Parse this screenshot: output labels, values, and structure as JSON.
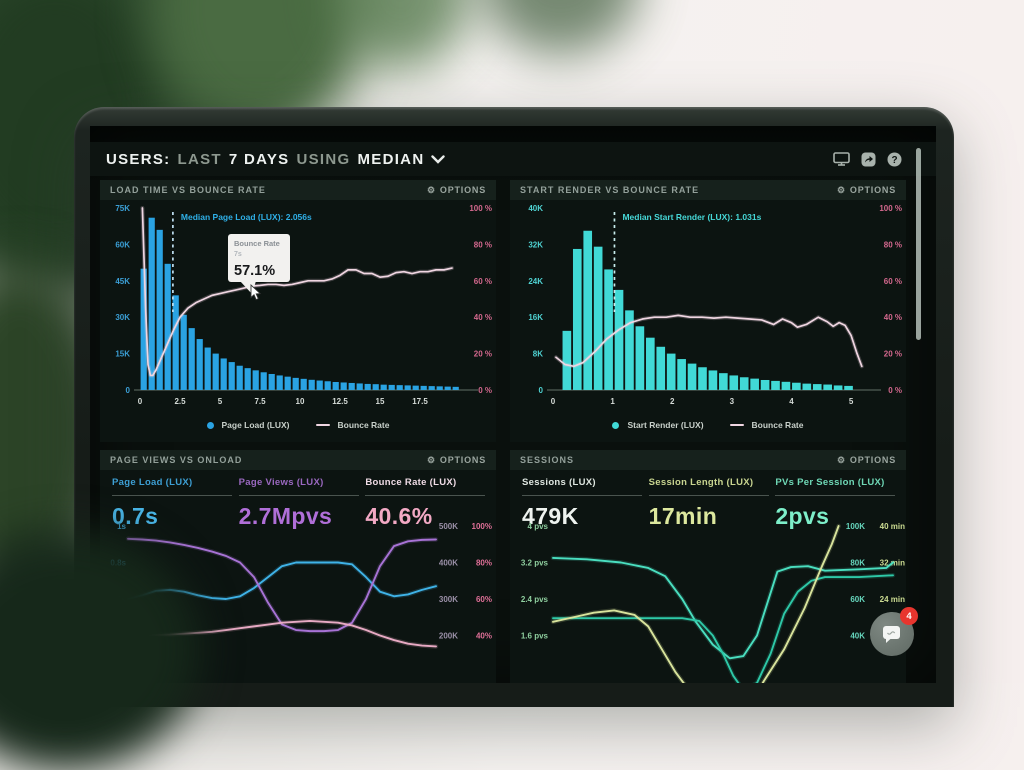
{
  "header": {
    "title_parts": [
      "USERS:",
      "LAST",
      "7 DAYS",
      "USING",
      "MEDIAN"
    ]
  },
  "panels": [
    {
      "title": "LOAD TIME VS BOUNCE RATE",
      "options_label": "OPTIONS"
    },
    {
      "title": "START RENDER VS BOUNCE RATE",
      "options_label": "OPTIONS"
    },
    {
      "title": "PAGE VIEWS VS ONLOAD",
      "options_label": "OPTIONS",
      "metrics": [
        {
          "label": "Page Load (LUX)",
          "value": "0.7s",
          "label_color": "#3d9fd4",
          "value_color": "#49b6e9"
        },
        {
          "label": "Page Views (LUX)",
          "value": "2.7Mpvs",
          "label_color": "#9a68c0",
          "value_color": "#b06fd8"
        },
        {
          "label": "Bounce Rate (LUX)",
          "value": "40.6%",
          "label_color": "#f0dce6",
          "value_color": "#f2a9c4"
        }
      ]
    },
    {
      "title": "SESSIONS",
      "options_label": "OPTIONS",
      "metrics": [
        {
          "label": "Sessions (LUX)",
          "value": "479K",
          "label_color": "#dfe7e1",
          "value_color": "#eef3ef"
        },
        {
          "label": "Session Length (LUX)",
          "value": "17min",
          "label_color": "#c9d590",
          "value_color": "#dde89e"
        },
        {
          "label": "PVs Per Session (LUX)",
          "value": "2pvs",
          "label_color": "#6fd8b6",
          "value_color": "#7deec9"
        }
      ]
    }
  ],
  "chart_data": [
    {
      "type": "bar",
      "title": "LOAD TIME VS BOUNCE RATE",
      "xlim": [
        0,
        20
      ],
      "x_ticks": [
        "0",
        "2.5",
        "5",
        "7.5",
        "10",
        "12.5",
        "15",
        "17.5"
      ],
      "left_axis": {
        "ticks": [
          "75K",
          "60K",
          "45K",
          "30K",
          "15K",
          "0"
        ],
        "ylim": [
          0,
          75000
        ],
        "color": "#3b9fd6"
      },
      "right_axis": {
        "ticks": [
          "100 %",
          "80 %",
          "60 %",
          "40 %",
          "20 %",
          "0 %"
        ],
        "ylim": [
          0,
          100
        ],
        "color": "#d4688e"
      },
      "bars": {
        "name": "Page Load (LUX)",
        "color": "#2aa3e3",
        "bin_start": 0,
        "bin_width": 0.5,
        "values_k": [
          50,
          71,
          66,
          52,
          39,
          31,
          25.5,
          21,
          17.5,
          15,
          13,
          11.5,
          10,
          9,
          8.1,
          7.3,
          6.6,
          6,
          5.5,
          5,
          4.6,
          4.2,
          3.9,
          3.6,
          3.3,
          3.1,
          2.9,
          2.7,
          2.5,
          2.4,
          2.2,
          2.1,
          2,
          1.9,
          1.8,
          1.7,
          1.6,
          1.5,
          1.4,
          1.3
        ]
      },
      "line": {
        "name": "Bounce Rate",
        "color": "#f0d6e2",
        "points": [
          [
            0.15,
            100
          ],
          [
            0.35,
            45
          ],
          [
            0.5,
            14
          ],
          [
            0.65,
            8
          ],
          [
            0.8,
            8
          ],
          [
            1,
            11
          ],
          [
            1.3,
            17
          ],
          [
            1.7,
            25
          ],
          [
            2.1,
            33
          ],
          [
            2.5,
            40
          ],
          [
            3,
            45
          ],
          [
            3.5,
            48
          ],
          [
            4,
            50
          ],
          [
            4.5,
            52
          ],
          [
            5,
            53
          ],
          [
            5.5,
            54
          ],
          [
            6,
            55
          ],
          [
            6.5,
            56
          ],
          [
            7,
            57.1
          ],
          [
            7.5,
            57.5
          ],
          [
            8,
            58
          ],
          [
            8.5,
            58
          ],
          [
            9,
            57.5
          ],
          [
            9.5,
            58
          ],
          [
            10,
            59
          ],
          [
            10.5,
            60
          ],
          [
            11,
            60
          ],
          [
            11.5,
            60
          ],
          [
            12,
            61
          ],
          [
            12.5,
            63
          ],
          [
            13,
            66
          ],
          [
            13.5,
            66
          ],
          [
            14,
            64
          ],
          [
            14.5,
            64
          ],
          [
            15,
            62
          ],
          [
            15.5,
            62.5
          ],
          [
            16,
            64.5
          ],
          [
            16.5,
            65
          ],
          [
            17,
            64
          ],
          [
            17.5,
            65
          ],
          [
            18,
            65
          ],
          [
            18.5,
            66
          ],
          [
            19,
            66
          ],
          [
            19.5,
            67
          ]
        ]
      },
      "median_line": {
        "x": 2.056,
        "label": "Median Page Load (LUX): 2.056s",
        "color": "#2fb0e8",
        "dash_color": "#bfe0f2"
      },
      "tooltip": {
        "title": "Bounce Rate",
        "subtitle": "7s",
        "value": "57.1%",
        "at_x": 7
      },
      "legend": [
        {
          "marker": "dot",
          "color": "#2aa3e3",
          "label": "Page Load (LUX)"
        },
        {
          "marker": "line",
          "color": "#f0d6e2",
          "label": "Bounce Rate"
        }
      ]
    },
    {
      "type": "bar",
      "title": "START RENDER VS BOUNCE RATE",
      "xlim": [
        0,
        5.2
      ],
      "x_ticks": [
        "0",
        "1",
        "2",
        "3",
        "4",
        "5"
      ],
      "left_axis": {
        "ticks": [
          "40K",
          "32K",
          "24K",
          "16K",
          "8K",
          "0"
        ],
        "ylim": [
          0,
          40000
        ],
        "color": "#4fd2d2"
      },
      "right_axis": {
        "ticks": [
          "100 %",
          "80 %",
          "60 %",
          "40 %",
          "20 %",
          "0 %"
        ],
        "ylim": [
          0,
          100
        ],
        "color": "#d4688e"
      },
      "bars": {
        "name": "Start Render (LUX)",
        "color": "#41d9d6",
        "bin_start": 0.15,
        "bin_width": 0.175,
        "values_k": [
          13,
          31,
          35,
          31.5,
          26.5,
          22,
          17.5,
          14,
          11.5,
          9.5,
          8,
          6.8,
          5.8,
          5,
          4.3,
          3.7,
          3.2,
          2.8,
          2.5,
          2.2,
          2,
          1.8,
          1.6,
          1.4,
          1.3,
          1.2,
          1,
          0.9
        ]
      },
      "line": {
        "name": "Bounce Rate",
        "color": "#f0d6e2",
        "points": [
          [
            0.05,
            18
          ],
          [
            0.2,
            14
          ],
          [
            0.35,
            13
          ],
          [
            0.5,
            15
          ],
          [
            0.7,
            21
          ],
          [
            0.9,
            28
          ],
          [
            1.1,
            33
          ],
          [
            1.3,
            37
          ],
          [
            1.5,
            39
          ],
          [
            1.7,
            40
          ],
          [
            1.9,
            40
          ],
          [
            2.1,
            41
          ],
          [
            2.3,
            40
          ],
          [
            2.5,
            40
          ],
          [
            2.7,
            39.5
          ],
          [
            2.9,
            40
          ],
          [
            3.1,
            39.5
          ],
          [
            3.3,
            39
          ],
          [
            3.5,
            38.5
          ],
          [
            3.7,
            36
          ],
          [
            3.85,
            39
          ],
          [
            4,
            37
          ],
          [
            4.1,
            34.5
          ],
          [
            4.25,
            36
          ],
          [
            4.45,
            40
          ],
          [
            4.6,
            37.5
          ],
          [
            4.7,
            35
          ],
          [
            4.8,
            37
          ],
          [
            4.9,
            35.5
          ],
          [
            5,
            30
          ],
          [
            5.1,
            20
          ],
          [
            5.18,
            13
          ]
        ]
      },
      "median_line": {
        "x": 1.031,
        "label": "Median Start Render (LUX): 1.031s",
        "color": "#46d8d8",
        "dash_color": "#c8ecec"
      },
      "legend": [
        {
          "marker": "dot",
          "color": "#41d9d6",
          "label": "Start Render (LUX)"
        },
        {
          "marker": "line",
          "color": "#f0d6e2",
          "label": "Bounce Rate"
        }
      ]
    },
    {
      "type": "line",
      "title": "PAGE VIEWS VS ONLOAD",
      "left_axis": {
        "ticks": [
          "1s",
          "0.8s",
          "0.6s",
          "0.4s"
        ],
        "color": "#3f9fcf"
      },
      "right_axis": {
        "col1_ticks": [
          "500K",
          "400K",
          "300K",
          "200K"
        ],
        "col1_color": "#9b90a8",
        "col2_ticks": [
          "100%",
          "80%",
          "60%",
          "40%"
        ],
        "col2_color": "#e07098"
      },
      "series": [
        {
          "name": "Page Load (LUX)",
          "axis": "sec",
          "color": "#3fb3e8",
          "values": [
            0.6,
            0.62,
            0.645,
            0.65,
            0.64,
            0.62,
            0.605,
            0.6,
            0.615,
            0.66,
            0.72,
            0.78,
            0.8,
            0.8,
            0.8,
            0.8,
            0.79,
            0.72,
            0.64,
            0.615,
            0.625,
            0.65,
            0.67
          ]
        },
        {
          "name": "Page Views (LUX)",
          "axis": "k",
          "color": "#a873d6",
          "values": [
            465,
            463,
            460,
            455,
            448,
            440,
            430,
            418,
            400,
            360,
            290,
            230,
            215,
            212,
            212,
            215,
            235,
            300,
            390,
            445,
            458,
            462,
            463
          ]
        },
        {
          "name": "Bounce Rate (LUX)",
          "axis": "pct",
          "color": "#e8aac4",
          "values": [
            40,
            40,
            40.2,
            40.5,
            41,
            41.5,
            42,
            43,
            44,
            45,
            46,
            47,
            47.5,
            48,
            47.5,
            47,
            45.5,
            43,
            40,
            37.5,
            35.5,
            34.5,
            34
          ]
        }
      ]
    },
    {
      "type": "line",
      "title": "SESSIONS",
      "left_axis": {
        "ticks": [
          "4 pvs",
          "3.2 pvs",
          "2.4 pvs",
          "1.6 pvs"
        ],
        "color": "#8fcf9f"
      },
      "right_axis": {
        "col1_ticks": [
          "100K",
          "80K",
          "60K",
          "40K"
        ],
        "col1_color": "#66d6bd",
        "col2_ticks": [
          "40 min",
          "32 min",
          "24 min",
          ""
        ],
        "col2_color": "#ccdc92"
      },
      "series": [
        {
          "name": "PVs Per Session (LUX)",
          "axis": "pvs",
          "color": "#4adfc0",
          "points": [
            [
              0,
              3.3
            ],
            [
              0.1,
              3.27
            ],
            [
              0.2,
              3.2
            ],
            [
              0.28,
              3.08
            ],
            [
              0.33,
              2.9
            ],
            [
              0.38,
              2.4
            ],
            [
              0.42,
              1.9
            ],
            [
              0.47,
              1.4
            ],
            [
              0.52,
              1.1
            ],
            [
              0.56,
              1.15
            ],
            [
              0.6,
              1.6
            ],
            [
              0.63,
              2.3
            ],
            [
              0.66,
              3.0
            ],
            [
              0.7,
              3.1
            ],
            [
              0.75,
              3.12
            ],
            [
              0.8,
              3.02
            ],
            [
              0.9,
              3.05
            ],
            [
              0.98,
              3.08
            ],
            [
              1,
              3.2
            ]
          ]
        },
        {
          "name": "Sessions (LUX)",
          "axis": "k",
          "color": "#2ec9a8",
          "points": [
            [
              0,
              49.5
            ],
            [
              0.1,
              49.5
            ],
            [
              0.2,
              49.5
            ],
            [
              0.3,
              49.5
            ],
            [
              0.38,
              49.5
            ],
            [
              0.43,
              48
            ],
            [
              0.47,
              40
            ],
            [
              0.5,
              30
            ],
            [
              0.53,
              18
            ],
            [
              0.56,
              10
            ],
            [
              0.6,
              14
            ],
            [
              0.64,
              30
            ],
            [
              0.68,
              52
            ],
            [
              0.72,
              64
            ],
            [
              0.76,
              70
            ],
            [
              0.8,
              72
            ],
            [
              0.9,
              72
            ],
            [
              1,
              73
            ]
          ]
        },
        {
          "name": "Session Length (LUX)",
          "axis": "min",
          "color": "#d9e49c",
          "points": [
            [
              0,
              19
            ],
            [
              0.06,
              20
            ],
            [
              0.12,
              21
            ],
            [
              0.18,
              21.5
            ],
            [
              0.24,
              20.5
            ],
            [
              0.28,
              18
            ],
            [
              0.32,
              13
            ],
            [
              0.36,
              8
            ],
            [
              0.42,
              2
            ],
            [
              0.5,
              -4
            ],
            [
              0.56,
              -2
            ],
            [
              0.62,
              6
            ],
            [
              0.68,
              13
            ],
            [
              0.74,
              22
            ],
            [
              0.79,
              31
            ],
            [
              0.82,
              36
            ],
            [
              0.84,
              40
            ]
          ]
        }
      ]
    }
  ],
  "chat_widget": {
    "badge_count": "4"
  }
}
